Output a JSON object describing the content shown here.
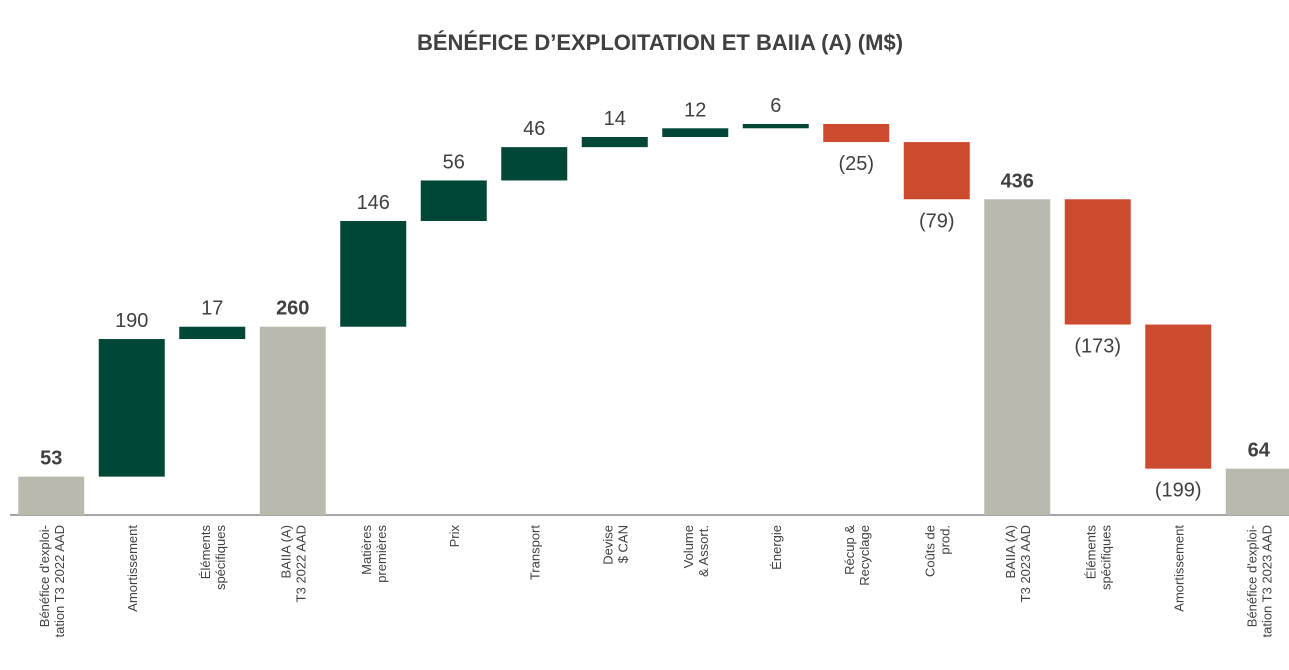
{
  "chart_data": {
    "type": "waterfall",
    "title": "BÉNÉFICE D’EXPLOITATION ET BAIIA (A) (M$)",
    "categories": [
      [
        "Bénéfice d'exploi-",
        "tation T3 2022 AAD"
      ],
      [
        "Amortissement"
      ],
      [
        "Éléments",
        "spécifiques"
      ],
      [
        "BAIIA (A)",
        "T3 2022 AAD"
      ],
      [
        "Matières",
        "premières"
      ],
      [
        "Prix"
      ],
      [
        "Transport"
      ],
      [
        "Devise",
        "$ CAN"
      ],
      [
        "Volume",
        "& Assort."
      ],
      [
        "Énergie"
      ],
      [
        "Récup &",
        "Recyclage"
      ],
      [
        "Coûts de",
        "prod."
      ],
      [
        "BAIIA (A)",
        "T3 2023 AAD"
      ],
      [
        "Éléments",
        "spécifiques"
      ],
      [
        "Amortissement"
      ],
      [
        "Bénéfice d'exploi-",
        "tation T3 2023 AAD"
      ]
    ],
    "values": [
      53,
      190,
      17,
      260,
      146,
      56,
      46,
      14,
      12,
      6,
      -25,
      -79,
      436,
      -173,
      -199,
      64
    ],
    "value_labels": [
      "53",
      "190",
      "17",
      "260",
      "146",
      "56",
      "46",
      "14",
      "12",
      "6",
      "(25)",
      "(79)",
      "436",
      "(173)",
      "(199)",
      "64"
    ],
    "measure": [
      "total",
      "relative",
      "relative",
      "total",
      "relative",
      "relative",
      "relative",
      "relative",
      "relative",
      "relative",
      "relative",
      "relative",
      "total",
      "relative",
      "relative",
      "total"
    ],
    "colors": {
      "total": "#b9b9ae",
      "increase": "#004738",
      "decrease": "#cc4a2e"
    },
    "ylim": [
      0,
      580
    ]
  }
}
